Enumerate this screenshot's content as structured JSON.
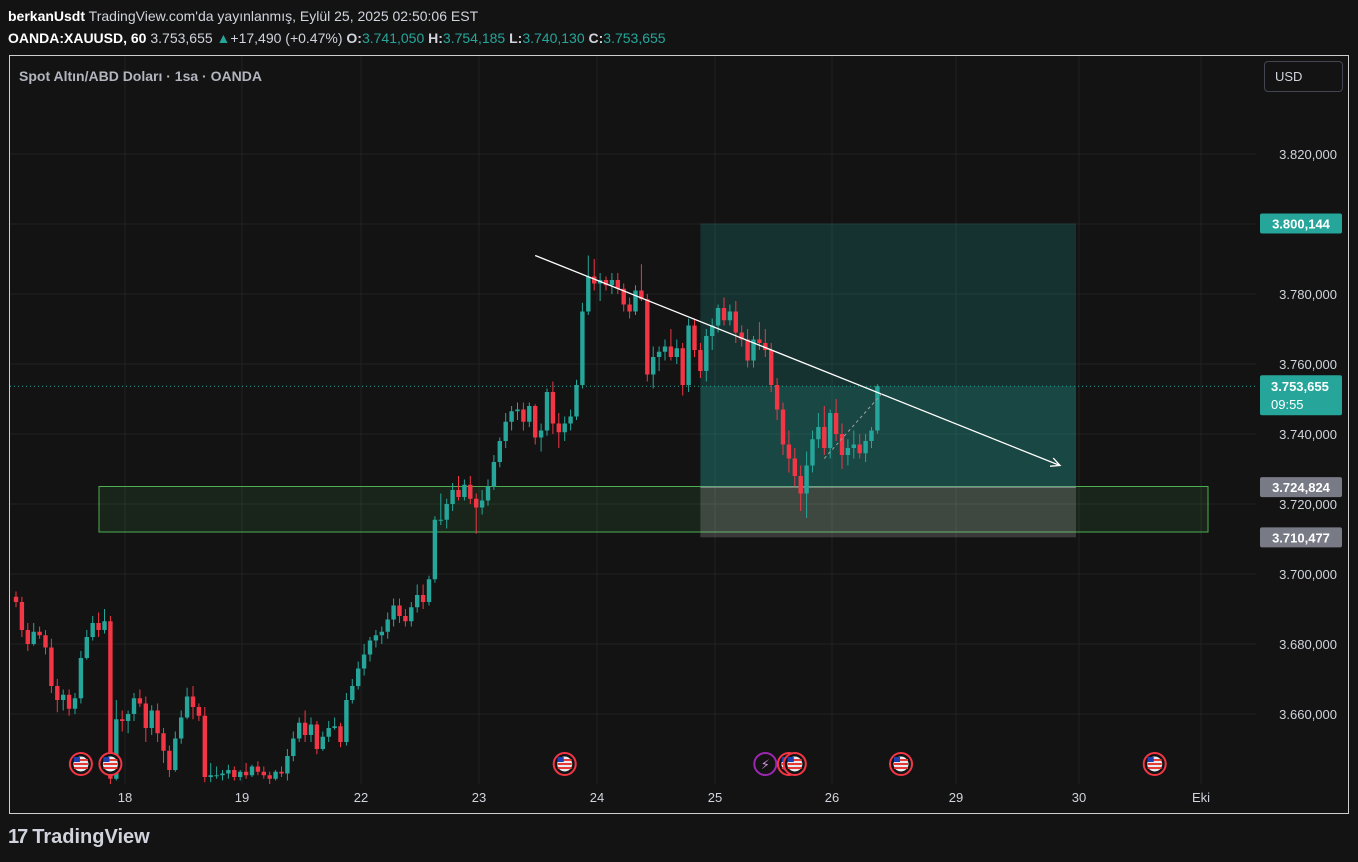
{
  "header": {
    "author": "berkanUsdt",
    "published": "TradingView.com'da yayınlanmış, Eylül 25, 2025 02:50:06 EST",
    "symbol": "OANDA:XAUUSD, 60",
    "last": "3.753,655",
    "change": "+17,490 (+0.47%)",
    "open_label": "O:",
    "open": "3.741,050",
    "high_label": "H:",
    "high": "3.754,185",
    "low_label": "L:",
    "low": "3.740,130",
    "close_label": "C:",
    "close": "3.753,655"
  },
  "legend_title": "Spot Altın/ABD Doları · 1sa · OANDA",
  "currency_button": "USD",
  "footer": {
    "brand": "TradingView",
    "logo_mark": "17"
  },
  "colors": {
    "up": "#26a69a",
    "down": "#f23645",
    "background": "#131313",
    "grid": "#222222"
  },
  "chart_data": {
    "type": "candlestick",
    "ylim": [
      3640,
      3850
    ],
    "y_ticks": [
      {
        "value": 3820,
        "label": "3.820,000"
      },
      {
        "value": 3800,
        "label": ""
      },
      {
        "value": 3780,
        "label": "3.780,000"
      },
      {
        "value": 3760,
        "label": "3.760,000"
      },
      {
        "value": 3740,
        "label": "3.740,000"
      },
      {
        "value": 3720,
        "label": "3.720,000"
      },
      {
        "value": 3700,
        "label": "3.700,000"
      },
      {
        "value": 3680,
        "label": "3.680,000"
      },
      {
        "value": 3660,
        "label": "3.660,000"
      }
    ],
    "x_ticks": [
      "18",
      "19",
      "22",
      "23",
      "24",
      "25",
      "26",
      "29",
      "30",
      "Eki"
    ],
    "current_price": {
      "value": 3753.655,
      "label": "3.753,655",
      "countdown": "09:55"
    },
    "price_markers": [
      {
        "value": 3800.144,
        "label": "3.800,144",
        "kind": "target"
      },
      {
        "value": 3724.824,
        "label": "3.724,824",
        "kind": "entry"
      },
      {
        "value": 3710.477,
        "label": "3.710,477",
        "kind": "stop"
      }
    ],
    "support_zone": {
      "from": 3712,
      "to": 3725
    },
    "trend_line": {
      "from": {
        "bar": 88,
        "price": 3791
      },
      "to": {
        "bar": 175,
        "price": 3731
      }
    },
    "position": {
      "from_bar": 116,
      "to_bar": 181,
      "entry": 3724.824,
      "target": 3800.144,
      "stop": 3710.477
    },
    "event_icons": [
      {
        "bar": 11,
        "kind": "us-flag"
      },
      {
        "bar": 16,
        "kind": "us-flag"
      },
      {
        "bar": 93,
        "kind": "us-flag"
      },
      {
        "bar": 127,
        "kind": "flash"
      },
      {
        "bar": 131,
        "kind": "us-flag"
      },
      {
        "bar": 132,
        "kind": "us-flag"
      },
      {
        "bar": 150,
        "kind": "us-flag"
      },
      {
        "bar": 193,
        "kind": "us-flag"
      }
    ],
    "ohlc": [
      [
        3693.5,
        3695.0,
        3690.5,
        3692.0
      ],
      [
        3692.0,
        3693.5,
        3682.0,
        3684.0
      ],
      [
        3684.0,
        3686.0,
        3678.0,
        3680.0
      ],
      [
        3680.0,
        3686.0,
        3679.5,
        3683.5
      ],
      [
        3683.5,
        3685.0,
        3681.5,
        3682.5
      ],
      [
        3682.5,
        3684.0,
        3677.0,
        3679.0
      ],
      [
        3679.0,
        3681.5,
        3666.0,
        3668.0
      ],
      [
        3668.0,
        3670.0,
        3660.5,
        3664.0
      ],
      [
        3664.0,
        3667.0,
        3661.0,
        3665.5
      ],
      [
        3665.5,
        3667.0,
        3659.5,
        3661.5
      ],
      [
        3661.5,
        3666.0,
        3660.0,
        3664.5
      ],
      [
        3664.5,
        3678.0,
        3663.0,
        3676.0
      ],
      [
        3676.0,
        3684.0,
        3675.5,
        3682.0
      ],
      [
        3682.0,
        3688.0,
        3681.0,
        3686.0
      ],
      [
        3686.0,
        3689.0,
        3682.0,
        3684.0
      ],
      [
        3684.0,
        3690.0,
        3683.0,
        3686.5
      ],
      [
        3686.5,
        3688.0,
        3640.0,
        3641.5
      ],
      [
        3641.5,
        3664.0,
        3641.0,
        3658.5
      ],
      [
        3658.5,
        3661.0,
        3655.0,
        3658.0
      ],
      [
        3658.0,
        3661.0,
        3654.5,
        3660.0
      ],
      [
        3660.0,
        3666.0,
        3658.0,
        3664.5
      ],
      [
        3664.5,
        3667.0,
        3662.0,
        3663.0
      ],
      [
        3663.0,
        3665.0,
        3652.0,
        3656.0
      ],
      [
        3656.0,
        3662.5,
        3654.0,
        3661.0
      ],
      [
        3661.0,
        3663.0,
        3652.0,
        3654.5
      ],
      [
        3654.5,
        3656.0,
        3646.0,
        3649.5
      ],
      [
        3649.5,
        3651.0,
        3642.0,
        3644.0
      ],
      [
        3644.0,
        3655.0,
        3643.5,
        3653.0
      ],
      [
        3653.0,
        3661.0,
        3651.5,
        3659.0
      ],
      [
        3659.0,
        3667.5,
        3658.5,
        3665.0
      ],
      [
        3665.0,
        3668.0,
        3658.5,
        3662.0
      ],
      [
        3662.0,
        3663.0,
        3658.0,
        3659.5
      ],
      [
        3659.5,
        3662.0,
        3640.5,
        3642.0
      ],
      [
        3642.0,
        3646.0,
        3640.5,
        3642.5
      ],
      [
        3642.5,
        3645.0,
        3641.5,
        3642.5
      ],
      [
        3642.5,
        3644.0,
        3641.0,
        3643.0
      ],
      [
        3643.0,
        3645.5,
        3641.5,
        3644.0
      ],
      [
        3644.0,
        3645.0,
        3641.0,
        3642.0
      ],
      [
        3642.0,
        3644.0,
        3641.0,
        3643.5
      ],
      [
        3643.5,
        3646.0,
        3641.5,
        3642.5
      ],
      [
        3642.5,
        3645.5,
        3642.0,
        3645.0
      ],
      [
        3645.0,
        3646.5,
        3642.5,
        3643.5
      ],
      [
        3643.5,
        3645.0,
        3641.5,
        3642.5
      ],
      [
        3642.5,
        3643.5,
        3640.0,
        3641.5
      ],
      [
        3641.5,
        3644.0,
        3641.0,
        3643.5
      ],
      [
        3643.5,
        3645.0,
        3642.0,
        3643.0
      ],
      [
        3643.0,
        3650.0,
        3641.0,
        3648.0
      ],
      [
        3648.0,
        3655.0,
        3646.5,
        3653.0
      ],
      [
        3653.0,
        3659.0,
        3652.0,
        3657.5
      ],
      [
        3657.5,
        3661.0,
        3652.0,
        3654.0
      ],
      [
        3654.0,
        3659.0,
        3652.0,
        3657.0
      ],
      [
        3657.0,
        3658.0,
        3648.5,
        3650.0
      ],
      [
        3650.0,
        3655.0,
        3649.5,
        3653.5
      ],
      [
        3653.5,
        3658.0,
        3652.0,
        3656.0
      ],
      [
        3656.0,
        3659.0,
        3655.5,
        3656.5
      ],
      [
        3656.5,
        3657.5,
        3650.5,
        3652.0
      ],
      [
        3652.0,
        3666.0,
        3651.0,
        3664.0
      ],
      [
        3664.0,
        3670.0,
        3663.0,
        3668.0
      ],
      [
        3668.0,
        3675.0,
        3667.0,
        3673.0
      ],
      [
        3673.0,
        3680.0,
        3671.0,
        3677.0
      ],
      [
        3677.0,
        3682.0,
        3675.0,
        3681.0
      ],
      [
        3681.0,
        3684.0,
        3679.0,
        3682.5
      ],
      [
        3682.5,
        3685.0,
        3680.0,
        3683.5
      ],
      [
        3683.5,
        3689.0,
        3681.5,
        3687.0
      ],
      [
        3687.0,
        3693.0,
        3685.0,
        3691.0
      ],
      [
        3691.0,
        3693.0,
        3686.0,
        3688.0
      ],
      [
        3688.0,
        3690.0,
        3685.0,
        3686.5
      ],
      [
        3686.5,
        3692.0,
        3685.0,
        3690.5
      ],
      [
        3690.5,
        3697.0,
        3689.0,
        3694.0
      ],
      [
        3694.0,
        3697.0,
        3690.0,
        3692.0
      ],
      [
        3692.0,
        3699.5,
        3691.0,
        3698.5
      ],
      [
        3698.5,
        3716.5,
        3697.5,
        3715.5
      ],
      [
        3715.5,
        3723.0,
        3714.0,
        3715.5
      ],
      [
        3715.5,
        3721.5,
        3713.0,
        3720.0
      ],
      [
        3720.0,
        3726.0,
        3718.0,
        3724.0
      ],
      [
        3724.0,
        3728.0,
        3721.0,
        3722.0
      ],
      [
        3722.0,
        3727.0,
        3721.0,
        3725.5
      ],
      [
        3725.5,
        3728.0,
        3720.0,
        3721.5
      ],
      [
        3721.5,
        3723.0,
        3711.5,
        3719.0
      ],
      [
        3719.0,
        3724.0,
        3717.0,
        3721.0
      ],
      [
        3721.0,
        3727.0,
        3719.5,
        3725.0
      ],
      [
        3725.0,
        3734.0,
        3724.0,
        3732.0
      ],
      [
        3732.0,
        3739.0,
        3730.5,
        3738.0
      ],
      [
        3738.0,
        3746.0,
        3736.0,
        3743.5
      ],
      [
        3743.5,
        3748.0,
        3741.0,
        3746.5
      ],
      [
        3746.5,
        3749.0,
        3744.0,
        3747.0
      ],
      [
        3747.0,
        3749.0,
        3741.0,
        3743.5
      ],
      [
        3743.5,
        3749.0,
        3742.0,
        3748.0
      ],
      [
        3748.0,
        3748.5,
        3737.0,
        3739.0
      ],
      [
        3739.0,
        3743.0,
        3735.0,
        3741.0
      ],
      [
        3741.0,
        3753.0,
        3739.5,
        3752.0
      ],
      [
        3752.0,
        3755.0,
        3740.0,
        3743.0
      ],
      [
        3743.0,
        3746.0,
        3736.0,
        3740.5
      ],
      [
        3740.5,
        3745.0,
        3738.0,
        3743.0
      ],
      [
        3743.0,
        3747.0,
        3741.0,
        3745.0
      ],
      [
        3745.0,
        3755.5,
        3744.0,
        3754.0
      ],
      [
        3754.0,
        3777.5,
        3753.0,
        3775.0
      ],
      [
        3775.0,
        3791.0,
        3774.0,
        3785.0
      ],
      [
        3785.0,
        3790.0,
        3781.0,
        3783.0
      ],
      [
        3783.0,
        3786.0,
        3778.0,
        3784.0
      ],
      [
        3784.0,
        3785.0,
        3781.0,
        3782.5
      ],
      [
        3782.5,
        3786.0,
        3780.0,
        3784.0
      ],
      [
        3784.0,
        3786.0,
        3780.0,
        3781.5
      ],
      [
        3781.5,
        3783.0,
        3775.0,
        3777.0
      ],
      [
        3777.0,
        3779.0,
        3773.0,
        3775.0
      ],
      [
        3775.0,
        3782.5,
        3774.0,
        3781.0
      ],
      [
        3781.0,
        3788.5,
        3778.0,
        3778.5
      ],
      [
        3778.5,
        3780.0,
        3755.0,
        3757.0
      ],
      [
        3757.0,
        3765.0,
        3753.0,
        3762.0
      ],
      [
        3762.0,
        3765.0,
        3758.0,
        3763.5
      ],
      [
        3763.5,
        3767.0,
        3761.0,
        3765.0
      ],
      [
        3765.0,
        3770.0,
        3761.0,
        3762.0
      ],
      [
        3762.0,
        3767.0,
        3760.0,
        3764.5
      ],
      [
        3764.5,
        3766.0,
        3751.0,
        3754.0
      ],
      [
        3754.0,
        3773.0,
        3752.0,
        3771.0
      ],
      [
        3771.0,
        3773.0,
        3762.0,
        3764.0
      ],
      [
        3764.0,
        3766.0,
        3756.0,
        3758.0
      ],
      [
        3758.0,
        3770.0,
        3755.0,
        3768.0
      ],
      [
        3768.0,
        3773.0,
        3764.0,
        3771.0
      ],
      [
        3771.0,
        3777.0,
        3769.0,
        3776.0
      ],
      [
        3776.0,
        3779.0,
        3771.0,
        3772.5
      ],
      [
        3772.5,
        3777.0,
        3771.0,
        3775.0
      ],
      [
        3775.0,
        3778.0,
        3766.0,
        3769.0
      ],
      [
        3769.0,
        3771.0,
        3765.0,
        3767.0
      ],
      [
        3767.0,
        3770.0,
        3759.0,
        3761.0
      ],
      [
        3761.0,
        3768.0,
        3759.0,
        3767.0
      ],
      [
        3767.0,
        3772.0,
        3764.0,
        3766.0
      ],
      [
        3766.0,
        3770.0,
        3762.0,
        3764.0
      ],
      [
        3764.0,
        3766.0,
        3752.0,
        3754.0
      ],
      [
        3754.0,
        3756.0,
        3744.0,
        3747.0
      ],
      [
        3747.0,
        3749.0,
        3734.0,
        3737.0
      ],
      [
        3737.0,
        3741.0,
        3729.0,
        3733.0
      ],
      [
        3733.0,
        3736.0,
        3725.0,
        3728.0
      ],
      [
        3728.0,
        3731.0,
        3718.0,
        3723.0
      ],
      [
        3723.0,
        3735.0,
        3716.0,
        3731.0
      ],
      [
        3731.0,
        3741.0,
        3729.0,
        3738.5
      ],
      [
        3738.5,
        3746.0,
        3736.0,
        3742.0
      ],
      [
        3742.0,
        3748.0,
        3734.0,
        3736.0
      ],
      [
        3736.0,
        3747.0,
        3733.0,
        3746.0
      ],
      [
        3746.0,
        3750.0,
        3738.0,
        3740.0
      ],
      [
        3740.0,
        3743.0,
        3730.0,
        3734.0
      ],
      [
        3734.0,
        3738.5,
        3731.0,
        3736.0
      ],
      [
        3736.0,
        3741.0,
        3733.0,
        3737.0
      ],
      [
        3737.0,
        3740.0,
        3733.0,
        3734.5
      ],
      [
        3734.5,
        3740.0,
        3732.0,
        3738.0
      ],
      [
        3738.0,
        3742.0,
        3736.0,
        3741.0
      ],
      [
        3741.0,
        3754.2,
        3740.1,
        3753.655
      ]
    ]
  }
}
